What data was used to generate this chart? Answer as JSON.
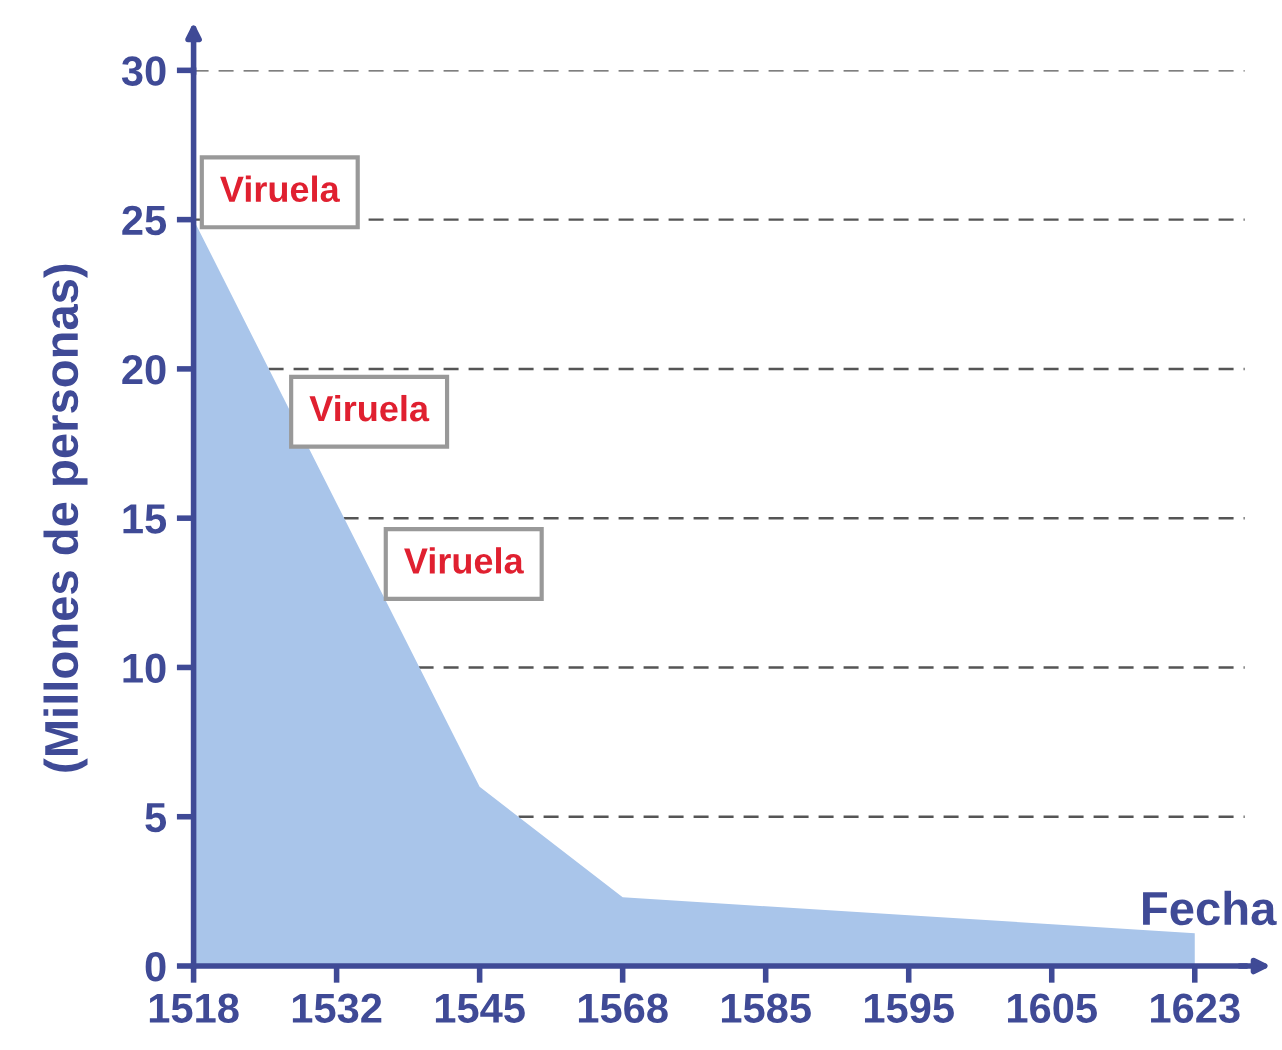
{
  "chart_data": {
    "type": "area",
    "xlabel": "Fecha",
    "ylabel": "(Millones de personas)",
    "categories": [
      "1518",
      "1532",
      "1545",
      "1568",
      "1585",
      "1595",
      "1605",
      "1623"
    ],
    "series": [
      {
        "color": "#a9c5ea",
        "values": [
          25,
          15.5,
          6,
          2.3,
          2.0,
          1.7,
          1.4,
          1.1
        ]
      }
    ],
    "ylim": [
      0,
      30
    ],
    "yticks": [
      0,
      5,
      10,
      15,
      20,
      25,
      30
    ],
    "grid": "y",
    "legend": false,
    "annotations": [
      "Viruela",
      "Viruela",
      "Viruela"
    ]
  }
}
